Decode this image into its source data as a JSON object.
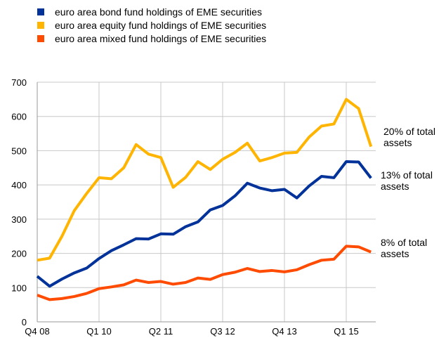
{
  "chart_data": {
    "type": "line",
    "categories": [
      "Q4 08",
      null,
      null,
      null,
      null,
      "Q1 10",
      null,
      null,
      null,
      null,
      "Q2 11",
      null,
      null,
      null,
      null,
      "Q3 12",
      null,
      null,
      null,
      null,
      "Q4 13",
      null,
      null,
      null,
      null,
      "Q1 15",
      null,
      null
    ],
    "series": [
      {
        "name": "euro area bond fund holdings of EME securities",
        "color": "#003299",
        "values": [
          133,
          104,
          125,
          143,
          157,
          185,
          208,
          225,
          243,
          242,
          257,
          256,
          278,
          292,
          327,
          340,
          368,
          405,
          391,
          383,
          387,
          362,
          397,
          425,
          421,
          468,
          467,
          420
        ]
      },
      {
        "name": "euro area equity fund holdings of EME securities",
        "color": "#ffb400",
        "values": [
          180,
          186,
          250,
          325,
          375,
          421,
          418,
          450,
          518,
          490,
          480,
          393,
          422,
          468,
          445,
          475,
          495,
          522,
          470,
          480,
          493,
          495,
          540,
          572,
          578,
          650,
          623,
          512
        ]
      },
      {
        "name": "euro area mixed fund holdings of EME securities",
        "color": "#ff4b00",
        "values": [
          78,
          65,
          68,
          74,
          83,
          97,
          102,
          108,
          122,
          115,
          118,
          110,
          115,
          128,
          124,
          138,
          145,
          156,
          147,
          150,
          146,
          152,
          167,
          180,
          183,
          221,
          219,
          204
        ]
      }
    ],
    "annotations": [
      {
        "text": "20% of total assets",
        "series": 1
      },
      {
        "text": "13% of total assets",
        "series": 0
      },
      {
        "text": "8% of total assets",
        "series": 2
      }
    ],
    "ylim": [
      0,
      700
    ],
    "yticks": [
      0,
      100,
      200,
      300,
      400,
      500,
      600,
      700
    ],
    "grid": true,
    "legend": "top-left"
  }
}
